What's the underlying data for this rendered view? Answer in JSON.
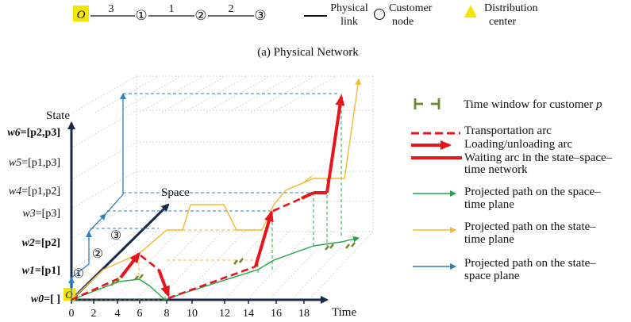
{
  "physical_network": {
    "nodes": [
      "O",
      "①",
      "②",
      "③"
    ],
    "edge_lengths": [
      "3",
      "1",
      "2"
    ],
    "caption": "(a) Physical Network"
  },
  "top_legend": {
    "physical_link": [
      "Physical",
      "link"
    ],
    "customer_node": [
      "Customer",
      "node"
    ],
    "distribution_center": [
      "Distribution",
      "center"
    ]
  },
  "axes": {
    "state": "State",
    "space": "Space",
    "time": "Time",
    "origin": "O",
    "time_ticks": [
      "0",
      "2",
      "4",
      "6",
      "8",
      "10",
      "12",
      "14",
      "16",
      "18"
    ],
    "state_labels": [
      {
        "w": "w0",
        "v": "=[  ]",
        "bold": true
      },
      {
        "w": "w1",
        "v": "=[p1]",
        "bold": true
      },
      {
        "w": "w2",
        "v": "=[p2]",
        "bold": true
      },
      {
        "w": "w3",
        "v": "=[p3]",
        "bold": false
      },
      {
        "w": "w4",
        "v": "=[p1,p2]",
        "bold": false
      },
      {
        "w": "w5",
        "v": "=[p1,p3]",
        "bold": false
      },
      {
        "w": "w6",
        "v": "=[p2,p3]",
        "bold": true
      }
    ],
    "space_nodes": [
      "①",
      "②",
      "③"
    ]
  },
  "legend": {
    "time_window": "Time window for customer ",
    "time_window_p": "p",
    "transportation": "Transportation arc",
    "loading": "Loading/unloading arc",
    "waiting": [
      "Waiting arc in the state–space–",
      "time network"
    ],
    "green": [
      "Projected path on the space–",
      "time plane"
    ],
    "yellow": [
      "Projected path on the state–",
      "time plane"
    ],
    "blue": [
      "Projected path on the state–",
      "space plane"
    ]
  },
  "colors": {
    "red": "#e8141b",
    "green": "#21a54a",
    "yellow": "#f5b82e",
    "blue": "#2f7fc4",
    "navy": "#1b2a4a",
    "olive": "#6d8a2c",
    "highlight": "#f5e600"
  }
}
